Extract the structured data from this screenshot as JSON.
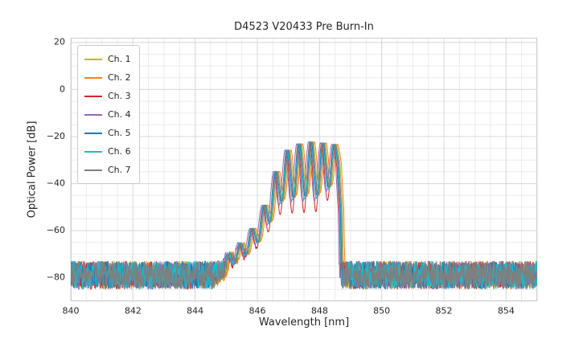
{
  "chart_data": {
    "type": "line",
    "title": "D4523 V20433 Pre Burn-In",
    "xlabel": "Wavelength [nm]",
    "ylabel": "Optical Power [dB]",
    "xlim": [
      840,
      855
    ],
    "ylim": [
      -90,
      22
    ],
    "x_ticks": [
      840,
      842,
      844,
      846,
      848,
      850,
      852,
      854
    ],
    "x_tick_labels": [
      "840",
      "842",
      "844",
      "846",
      "848",
      "850",
      "852",
      "854"
    ],
    "y_ticks": [
      20,
      0,
      -20,
      -40,
      -60,
      -80
    ],
    "y_tick_labels": [
      "20",
      "0",
      "−20",
      "−40",
      "−60",
      "−80"
    ],
    "x_minor_step": 0.5,
    "y_minor_step": 5,
    "grid": true,
    "legend_position": "upper left",
    "series": [
      {
        "name": "Ch. 1",
        "color": "#bcbd22",
        "shift": 0.06,
        "depth_scale": 1.0,
        "seed": 11
      },
      {
        "name": "Ch. 2",
        "color": "#ff7f0e",
        "shift": 0.1,
        "depth_scale": 0.95,
        "seed": 22
      },
      {
        "name": "Ch. 3",
        "color": "#d62728",
        "shift": -0.04,
        "depth_scale": 1.3,
        "seed": 33
      },
      {
        "name": "Ch. 4",
        "color": "#9467bd",
        "shift": -0.08,
        "depth_scale": 1.1,
        "seed": 44
      },
      {
        "name": "Ch. 5",
        "color": "#1f77b4",
        "shift": 0.0,
        "depth_scale": 1.0,
        "seed": 55
      },
      {
        "name": "Ch. 6",
        "color": "#17becf",
        "shift": -0.02,
        "depth_scale": 1.05,
        "seed": 66
      },
      {
        "name": "Ch. 7",
        "color": "#7f7f7f",
        "shift": 0.03,
        "depth_scale": 1.0,
        "seed": 77
      }
    ],
    "signal_model": {
      "envelope_top": [
        [
          840.0,
          -95
        ],
        [
          844.5,
          -95
        ],
        [
          844.85,
          -78
        ],
        [
          845.1,
          -70
        ],
        [
          845.5,
          -65
        ],
        [
          845.9,
          -58
        ],
        [
          846.2,
          -50
        ],
        [
          846.5,
          -38
        ],
        [
          846.8,
          -28
        ],
        [
          847.1,
          -24
        ],
        [
          847.5,
          -22.5
        ],
        [
          847.9,
          -22
        ],
        [
          848.2,
          -23
        ],
        [
          848.45,
          -22.5
        ],
        [
          848.6,
          -26
        ],
        [
          848.68,
          -45
        ],
        [
          848.74,
          -95
        ],
        [
          855.0,
          -95
        ]
      ],
      "fringe_depth": [
        [
          844.5,
          5
        ],
        [
          845.3,
          7
        ],
        [
          845.9,
          9
        ],
        [
          846.3,
          13
        ],
        [
          846.7,
          18
        ],
        [
          847.1,
          22
        ],
        [
          847.5,
          23
        ],
        [
          848.0,
          23
        ],
        [
          848.35,
          18
        ],
        [
          848.55,
          10
        ],
        [
          848.74,
          4
        ]
      ],
      "fringe_period": 0.38,
      "fringe_phase": 847.35
    },
    "noise_model": {
      "top": -73,
      "range": 12
    },
    "sample_step": 0.01
  },
  "colors": {
    "grid_major": "#d9d9d9",
    "grid_minor": "#ebebeb",
    "frame": "#cccccc",
    "tick_text": "#262626"
  }
}
